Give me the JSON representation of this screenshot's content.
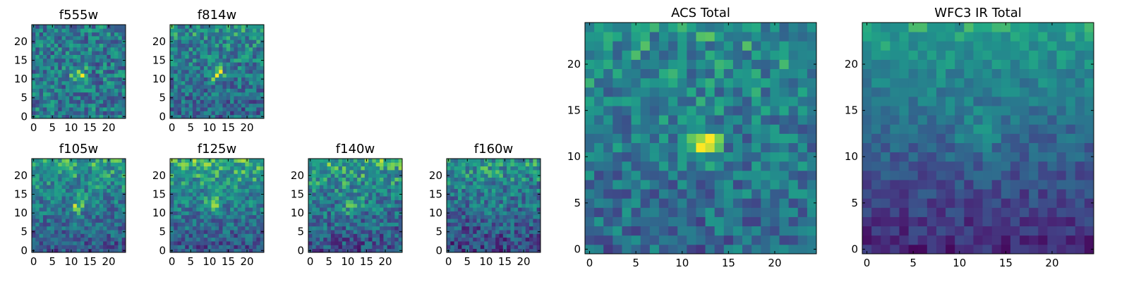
{
  "chart_data": [
    {
      "type": "heatmap",
      "title": "f555w",
      "colormap": "viridis",
      "shape": [
        25,
        25
      ],
      "xlim": [
        -0.5,
        24.5
      ],
      "ylim": [
        -0.5,
        24.5
      ],
      "xticks": [
        0,
        5,
        10,
        15,
        20
      ],
      "yticks": [
        0,
        5,
        10,
        15,
        20
      ],
      "features": {
        "base": 0.5,
        "blob": {
          "x": 12,
          "y": 11.5,
          "radius": 1.8,
          "amp": 0.5
        },
        "top_gradient": 0.0,
        "noise": 0.55
      }
    },
    {
      "type": "heatmap",
      "title": "f814w",
      "colormap": "viridis",
      "shape": [
        25,
        25
      ],
      "xlim": [
        -0.5,
        24.5
      ],
      "ylim": [
        -0.5,
        24.5
      ],
      "xticks": [
        0,
        5,
        10,
        15,
        20
      ],
      "yticks": [
        0,
        5,
        10,
        15,
        20
      ],
      "features": {
        "base": 0.5,
        "blob": {
          "x": 12,
          "y": 11.5,
          "radius": 1.8,
          "amp": 0.45
        },
        "top_gradient": 0.2,
        "noise": 0.5
      }
    },
    {
      "type": "heatmap",
      "title": "f105w",
      "colormap": "viridis",
      "shape": [
        25,
        25
      ],
      "xlim": [
        -0.5,
        24.5
      ],
      "ylim": [
        -0.5,
        24.5
      ],
      "xticks": [
        0,
        5,
        10,
        15,
        20
      ],
      "yticks": [
        0,
        5,
        10,
        15,
        20
      ],
      "features": {
        "base": 0.5,
        "blob": {
          "x": 12,
          "y": 12,
          "radius": 2.0,
          "amp": 0.35
        },
        "top_gradient": 0.35,
        "noise": 0.45
      }
    },
    {
      "type": "heatmap",
      "title": "f125w",
      "colormap": "viridis",
      "shape": [
        25,
        25
      ],
      "xlim": [
        -0.5,
        24.5
      ],
      "ylim": [
        -0.5,
        24.5
      ],
      "xticks": [
        0,
        5,
        10,
        15,
        20
      ],
      "yticks": [
        0,
        5,
        10,
        15,
        20
      ],
      "features": {
        "base": 0.52,
        "blob": {
          "x": 11,
          "y": 12,
          "radius": 2.2,
          "amp": 0.25
        },
        "top_gradient": 0.4,
        "noise": 0.45
      }
    },
    {
      "type": "heatmap",
      "title": "f140w",
      "colormap": "viridis",
      "shape": [
        25,
        25
      ],
      "xlim": [
        -0.5,
        24.5
      ],
      "ylim": [
        -0.5,
        24.5
      ],
      "xticks": [
        0,
        5,
        10,
        15,
        20
      ],
      "yticks": [
        0,
        5,
        10,
        15,
        20
      ],
      "features": {
        "base": 0.5,
        "blob": {
          "x": 11,
          "y": 12,
          "radius": 2.2,
          "amp": 0.25
        },
        "top_gradient": 0.4,
        "noise": 0.5
      }
    },
    {
      "type": "heatmap",
      "title": "f160w",
      "colormap": "viridis",
      "shape": [
        25,
        25
      ],
      "xlim": [
        -0.5,
        24.5
      ],
      "ylim": [
        -0.5,
        24.5
      ],
      "xticks": [
        0,
        5,
        10,
        15,
        20
      ],
      "yticks": [
        0,
        5,
        10,
        15,
        20
      ],
      "features": {
        "base": 0.45,
        "blob": {
          "x": 12,
          "y": 12,
          "radius": 2.0,
          "amp": 0.15
        },
        "top_gradient": 0.4,
        "noise": 0.5
      }
    },
    {
      "type": "heatmap",
      "title": "ACS Total",
      "colormap": "viridis",
      "shape": [
        25,
        25
      ],
      "xlim": [
        -0.5,
        24.5
      ],
      "ylim": [
        -0.5,
        24.5
      ],
      "xticks": [
        0,
        5,
        10,
        15,
        20
      ],
      "yticks": [
        0,
        5,
        10,
        15,
        20
      ],
      "features": {
        "base": 0.52,
        "blob": {
          "x": 12,
          "y": 11.5,
          "radius": 1.9,
          "amp": 0.45
        },
        "top_gradient": 0.2,
        "noise": 0.45
      }
    },
    {
      "type": "heatmap",
      "title": "WFC3 IR Total",
      "colormap": "viridis",
      "shape": [
        25,
        25
      ],
      "xlim": [
        -0.5,
        24.5
      ],
      "ylim": [
        -0.5,
        24.5
      ],
      "xticks": [
        0,
        5,
        10,
        15,
        20
      ],
      "yticks": [
        0,
        5,
        10,
        15,
        20
      ],
      "features": {
        "base": 0.42,
        "blob": {
          "x": 12,
          "y": 12.5,
          "radius": 2.2,
          "amp": 0.18
        },
        "top_gradient": 0.55,
        "noise": 0.25
      }
    }
  ]
}
